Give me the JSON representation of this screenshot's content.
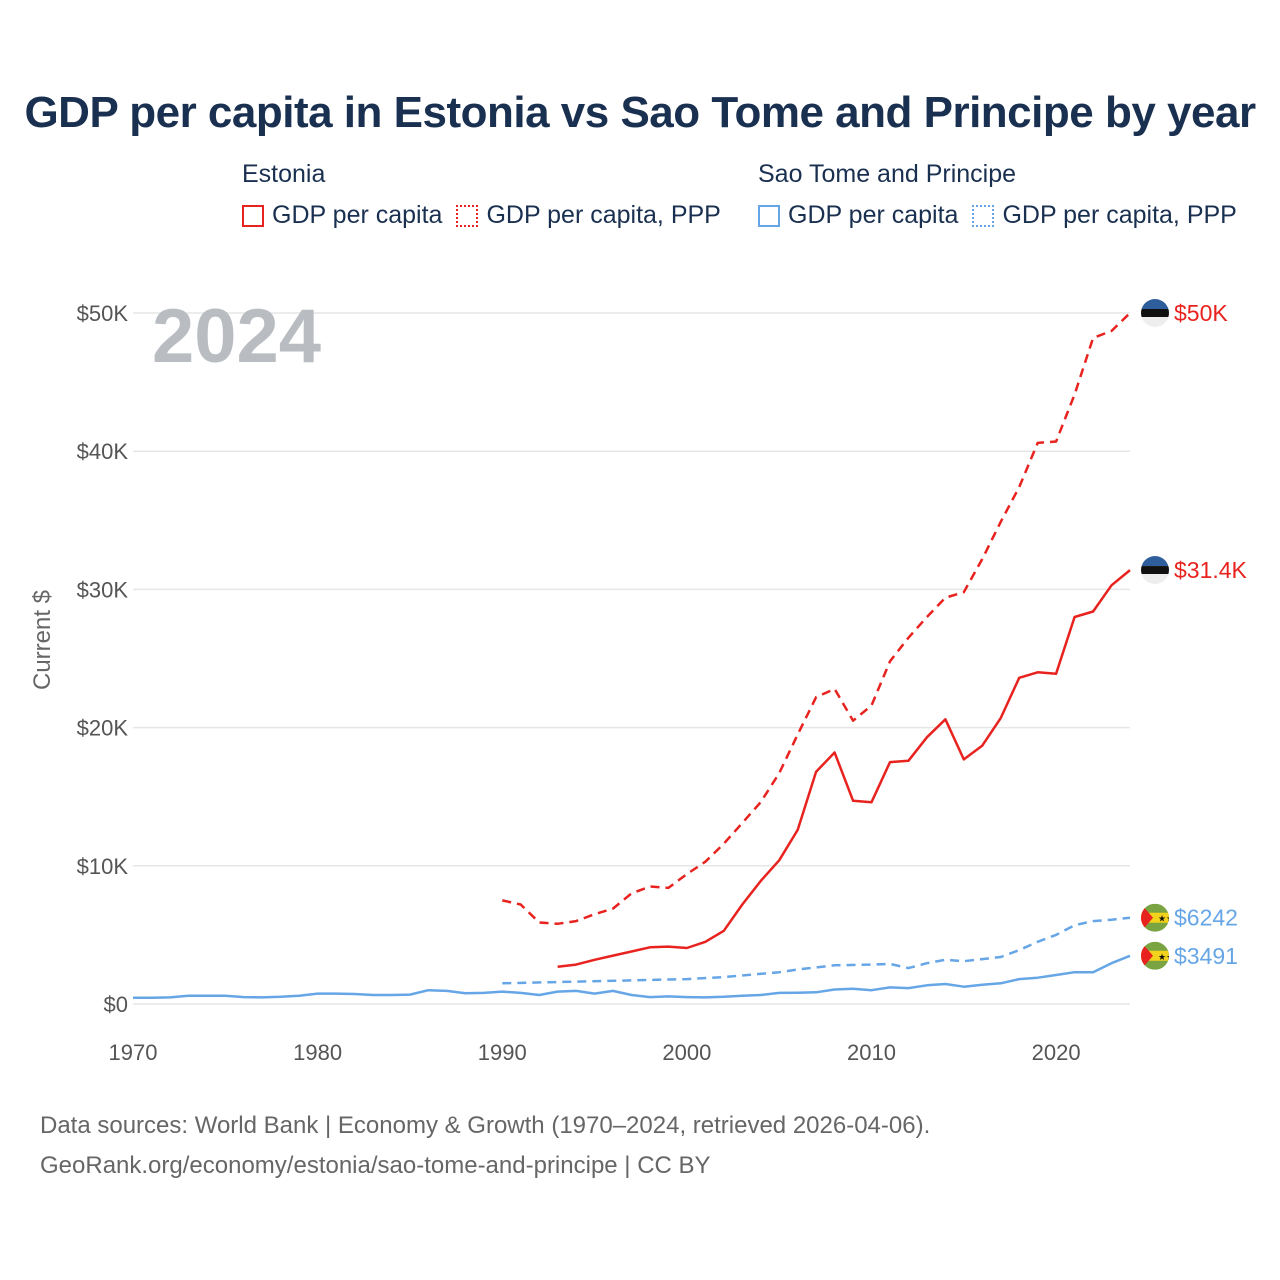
{
  "title": "GDP per capita in Estonia vs Sao Tome and Principe by year",
  "legend": {
    "groups": [
      {
        "country": "Estonia",
        "items": [
          {
            "label": "GDP per capita",
            "color": "#e8231f",
            "style": "solid"
          },
          {
            "label": "GDP per capita, PPP",
            "color": "#e8231f",
            "style": "dotted"
          }
        ]
      },
      {
        "country": "Sao Tome and Principe",
        "items": [
          {
            "label": "GDP per capita",
            "color": "#67a6e6",
            "style": "solid"
          },
          {
            "label": "GDP per capita, PPP",
            "color": "#67a6e6",
            "style": "dotted"
          }
        ]
      }
    ]
  },
  "year_overlay": "2024",
  "end_labels": [
    {
      "text": "$50K",
      "color": "#e8231f",
      "value": 50000,
      "flag": "estonia-flag-icon"
    },
    {
      "text": "$31.4K",
      "color": "#e8231f",
      "value": 31400,
      "flag": "estonia-flag-icon"
    },
    {
      "text": "$6242",
      "color": "#67a6e6",
      "value": 6242,
      "flag": "sao-tome-flag-icon"
    },
    {
      "text": "$3491",
      "color": "#67a6e6",
      "value": 3491,
      "flag": "sao-tome-flag-icon"
    }
  ],
  "source_lines": [
    "Data sources: World Bank | Economy & Growth (1970–2024, retrieved 2026-04-06).",
    "GeoRank.org/economy/estonia/sao-tome-and-principe | CC BY"
  ],
  "chart_data": {
    "type": "line",
    "title": "GDP per capita in Estonia vs Sao Tome and Principe by year",
    "xlabel": "",
    "ylabel": "Current $",
    "xlim": [
      1970,
      2024
    ],
    "ylim": [
      0,
      50000
    ],
    "x_ticks": [
      1970,
      1980,
      1990,
      2000,
      2010,
      2020
    ],
    "y_ticks": [
      0,
      10000,
      20000,
      30000,
      40000,
      50000
    ],
    "y_tick_labels": [
      "$0",
      "$10K",
      "$20K",
      "$30K",
      "$40K",
      "$50K"
    ],
    "grid": true,
    "series": [
      {
        "name": "Estonia GDP per capita, PPP",
        "color": "#e8231f",
        "dash": true,
        "x": [
          1990,
          1991,
          1992,
          1993,
          1994,
          1995,
          1996,
          1997,
          1998,
          1999,
          2000,
          2001,
          2002,
          2003,
          2004,
          2005,
          2006,
          2007,
          2008,
          2009,
          2010,
          2011,
          2012,
          2013,
          2014,
          2015,
          2016,
          2017,
          2018,
          2019,
          2020,
          2021,
          2022,
          2023,
          2024
        ],
        "y": [
          7500,
          7200,
          5900,
          5800,
          6000,
          6500,
          6900,
          8000,
          8500,
          8400,
          9400,
          10300,
          11600,
          13100,
          14600,
          16700,
          19500,
          22200,
          22800,
          20500,
          21600,
          24800,
          26500,
          28000,
          29400,
          29800,
          32200,
          34900,
          37400,
          40600,
          40700,
          44100,
          48200,
          48700,
          50000
        ]
      },
      {
        "name": "Estonia GDP per capita",
        "color": "#e8231f",
        "dash": false,
        "x": [
          1993,
          1994,
          1995,
          1996,
          1997,
          1998,
          1999,
          2000,
          2001,
          2002,
          2003,
          2004,
          2005,
          2006,
          2007,
          2008,
          2009,
          2010,
          2011,
          2012,
          2013,
          2014,
          2015,
          2016,
          2017,
          2018,
          2019,
          2020,
          2021,
          2022,
          2023,
          2024
        ],
        "y": [
          2700,
          2850,
          3200,
          3500,
          3800,
          4100,
          4150,
          4050,
          4500,
          5300,
          7200,
          8900,
          10400,
          12600,
          16800,
          18200,
          14700,
          14600,
          17500,
          17600,
          19300,
          20600,
          17700,
          18700,
          20700,
          23600,
          24000,
          23900,
          28000,
          28400,
          30300,
          31400
        ]
      },
      {
        "name": "Sao Tome and Principe GDP per capita, PPP",
        "color": "#67a6e6",
        "dash": true,
        "x": [
          1990,
          1995,
          2000,
          2002,
          2005,
          2006,
          2008,
          2010,
          2011,
          2012,
          2013,
          2014,
          2015,
          2016,
          2017,
          2018,
          2019,
          2020,
          2021,
          2022,
          2023,
          2024
        ],
        "y": [
          1500,
          1650,
          1800,
          1950,
          2300,
          2500,
          2800,
          2850,
          2900,
          2600,
          2950,
          3200,
          3100,
          3250,
          3400,
          3900,
          4500,
          5000,
          5700,
          6000,
          6100,
          6242
        ]
      },
      {
        "name": "Sao Tome and Principe GDP per capita",
        "color": "#67a6e6",
        "dash": false,
        "x": [
          1970,
          1971,
          1972,
          1973,
          1974,
          1975,
          1976,
          1977,
          1978,
          1979,
          1980,
          1981,
          1982,
          1983,
          1984,
          1985,
          1986,
          1987,
          1988,
          1989,
          1990,
          1991,
          1992,
          1993,
          1994,
          1995,
          1996,
          1997,
          1998,
          1999,
          2000,
          2001,
          2002,
          2003,
          2004,
          2005,
          2006,
          2007,
          2008,
          2009,
          2010,
          2011,
          2012,
          2013,
          2014,
          2015,
          2016,
          2017,
          2018,
          2019,
          2020,
          2021,
          2022,
          2023,
          2024
        ],
        "y": [
          450,
          450,
          480,
          600,
          600,
          600,
          500,
          480,
          520,
          600,
          750,
          750,
          720,
          650,
          650,
          680,
          1000,
          950,
          780,
          800,
          900,
          800,
          650,
          900,
          950,
          750,
          950,
          650,
          500,
          550,
          500,
          480,
          520,
          600,
          650,
          800,
          820,
          850,
          1050,
          1100,
          1000,
          1200,
          1150,
          1350,
          1450,
          1250,
          1400,
          1500,
          1800,
          1900,
          2100,
          2300,
          2300,
          2950,
          3491
        ]
      }
    ]
  }
}
